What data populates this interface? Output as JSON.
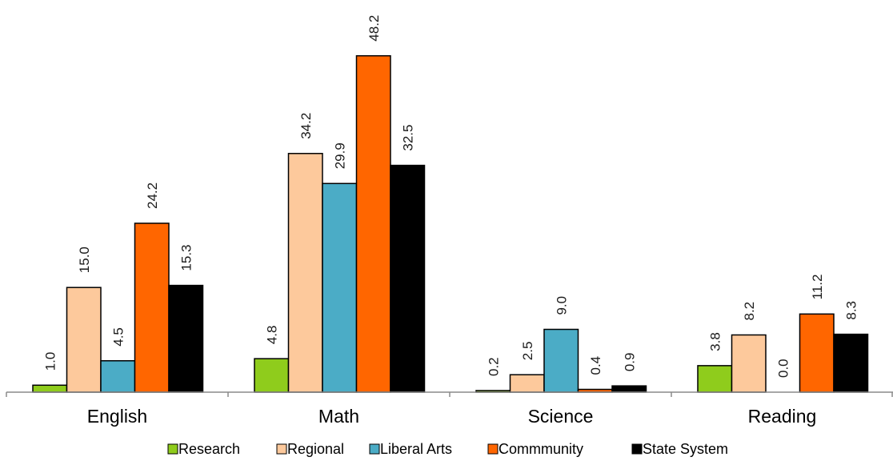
{
  "chart_data": {
    "type": "bar",
    "title": "",
    "xlabel": "",
    "ylabel": "",
    "ylim": [
      0,
      50
    ],
    "grid": false,
    "legend_position": "bottom",
    "value_decimals": 1,
    "categories": [
      "English",
      "Math",
      "Science",
      "Reading"
    ],
    "series": [
      {
        "name": "Research",
        "color": "#8fcc1c",
        "values": [
          1.0,
          4.8,
          0.2,
          3.8
        ]
      },
      {
        "name": "Regional",
        "color": "#fdc99c",
        "values": [
          15.0,
          34.2,
          2.5,
          8.2
        ]
      },
      {
        "name": "Liberal Arts",
        "color": "#4bacc6",
        "values": [
          4.5,
          29.9,
          9.0,
          0.0
        ]
      },
      {
        "name": "Commmunity",
        "color": "#ff6600",
        "values": [
          24.2,
          48.2,
          0.4,
          11.2
        ]
      },
      {
        "name": "State System",
        "color": "#000000",
        "values": [
          15.3,
          32.5,
          0.9,
          8.3
        ]
      }
    ]
  }
}
